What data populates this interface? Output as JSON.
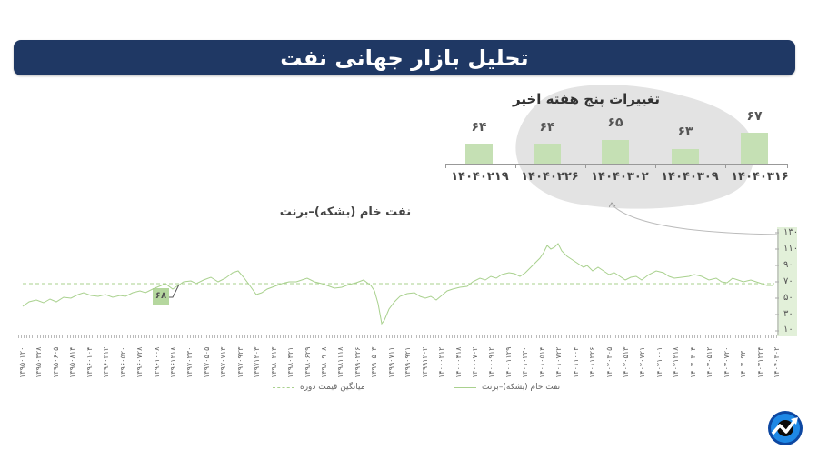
{
  "header": {
    "title": "تحلیل بازار جهانی نفت"
  },
  "weekly": {
    "title": "تغییرات پنج هفته اخیر",
    "bars": [
      {
        "date": "۱۴۰۴۰۲۱۹",
        "value": "۶۴"
      },
      {
        "date": "۱۴۰۴۰۲۲۶",
        "value": "۶۴"
      },
      {
        "date": "۱۴۰۴۰۳۰۲",
        "value": "۶۵"
      },
      {
        "date": "۱۴۰۴۰۳۰۹",
        "value": "۶۳"
      },
      {
        "date": "۱۴۰۴۰۳۱۶",
        "value": "۶۷"
      }
    ]
  },
  "main_chart": {
    "title": "نفت خام (بشکه)–برنت",
    "callout_value": "۶۸",
    "y_ticks": [
      "۱۳۰",
      "۱۱۰",
      "۹۰",
      "۷۰",
      "۵۰",
      "۳۰",
      "۱۰"
    ],
    "x_labels": [
      "۱۳۹۵۰۱۲۰",
      "۱۳۹۵۰۳۲۸",
      "۱۳۹۵۰۶۰۵",
      "۱۳۹۵۰۸۱۴",
      "۱۳۹۶۰۱۰۴",
      "۱۳۹۶۰۳۱۲",
      "۱۳۹۶۰۵۲۰",
      "۱۳۹۶۰۷۲۸",
      "۱۳۹۶۱۰۰۸",
      "۱۳۹۶۱۲۱۸",
      "۱۳۹۷۰۲۳۰",
      "۱۳۹۷۰۵۰۵",
      "۱۳۹۷۰۷۱۳",
      "۱۳۹۷۰۹۲۳",
      "۱۳۹۷۱۲۰۳",
      "۱۳۹۸۰۲۱۳",
      "۱۳۹۸۰۴۲۱",
      "۱۳۹۸۰۶۲۹",
      "۱۳۹۸۰۹۰۸",
      "۱۳۹۸۱۱۱۸",
      "۱۳۹۹۰۲۲۶",
      "۱۳۹۹۰۵۰۳",
      "۱۳۹۹۰۷۱۱",
      "۱۳۹۹۰۹۲۱",
      "۱۳۹۹۱۲۰۲",
      "۱۴۰۰۰۲۱۲",
      "۱۴۰۰۰۴۱۸",
      "۱۴۰۰۰۷۰۲",
      "۱۴۰۰۰۹۱۲",
      "۱۴۰۰۱۱۲۹",
      "۱۴۰۱۰۲۳۰",
      "۱۴۰۱۰۵۱۴",
      "۱۴۰۱۰۷۲۲",
      "۱۴۰۱۱۰۰۴",
      "۱۴۰۱۱۲۲۶",
      "۱۴۰۲۰۳۰۵",
      "۱۴۰۲۰۵۱۳",
      "۱۴۰۲۰۷۲۱",
      "۱۴۰۲۱۰۰۱",
      "۱۴۰۲۱۲۱۸",
      "۱۴۰۳۰۳۰۴",
      "۱۴۰۳۰۵۱۲",
      "۱۴۰۳۰۷۲۰",
      "۱۴۰۳۰۹۳۰",
      "۱۴۰۳۱۲۲۴",
      "۱۴۰۴۰۳۰۲"
    ]
  },
  "legend": {
    "series": "نفت خام (بشکه)–برنت",
    "average": "میانگین قیمت دوره"
  },
  "colors": {
    "title_bg": "#1f3864",
    "bar": "#c5e0b4",
    "line": "#a9d18e",
    "blob": "#e3e3e3",
    "logo": "#1e88e5"
  },
  "chart_data": [
    {
      "type": "bar",
      "title": "تغییرات پنج هفته اخیر",
      "categories": [
        "1404/02/19",
        "1404/02/26",
        "1404/03/02",
        "1404/03/09",
        "1404/03/16"
      ],
      "values": [
        64,
        64,
        65,
        63,
        67
      ],
      "xlabel": "",
      "ylabel": ""
    },
    {
      "type": "line",
      "title": "نفت خام (بشکه)–برنت",
      "ylabel": "",
      "xlabel": "",
      "ylim": [
        10,
        130
      ],
      "y_ticks": [
        10,
        30,
        50,
        70,
        90,
        110,
        130
      ],
      "x_range": [
        "1395/01/20",
        "1404/03/02"
      ],
      "series": [
        {
          "name": "نفت خام (بشکه)–برنت",
          "style": "solid",
          "x": [
            "1395/01",
            "1395/06",
            "1395/12",
            "1396/04",
            "1396/08",
            "1396/10",
            "1397/03",
            "1397/07",
            "1397/09",
            "1398/01",
            "1398/06",
            "1398/10",
            "1399/01",
            "1399/04",
            "1399/08",
            "1399/12",
            "1400/04",
            "1400/08",
            "1401/01",
            "1401/03",
            "1401/06",
            "1401/10",
            "1402/02",
            "1402/07",
            "1402/10",
            "1403/02",
            "1403/07",
            "1403/10",
            "1404/01",
            "1404/03"
          ],
          "values": [
            42,
            48,
            54,
            48,
            60,
            68,
            74,
            84,
            60,
            70,
            62,
            68,
            24,
            42,
            40,
            64,
            74,
            82,
            115,
            120,
            96,
            82,
            76,
            90,
            78,
            86,
            72,
            74,
            66,
            64
          ]
        },
        {
          "name": "میانگین قیمت دوره",
          "style": "dashed",
          "values": [
            68
          ]
        }
      ],
      "annotations": [
        {
          "label": "68",
          "note": "period average"
        }
      ],
      "legend_position": "bottom"
    }
  ]
}
